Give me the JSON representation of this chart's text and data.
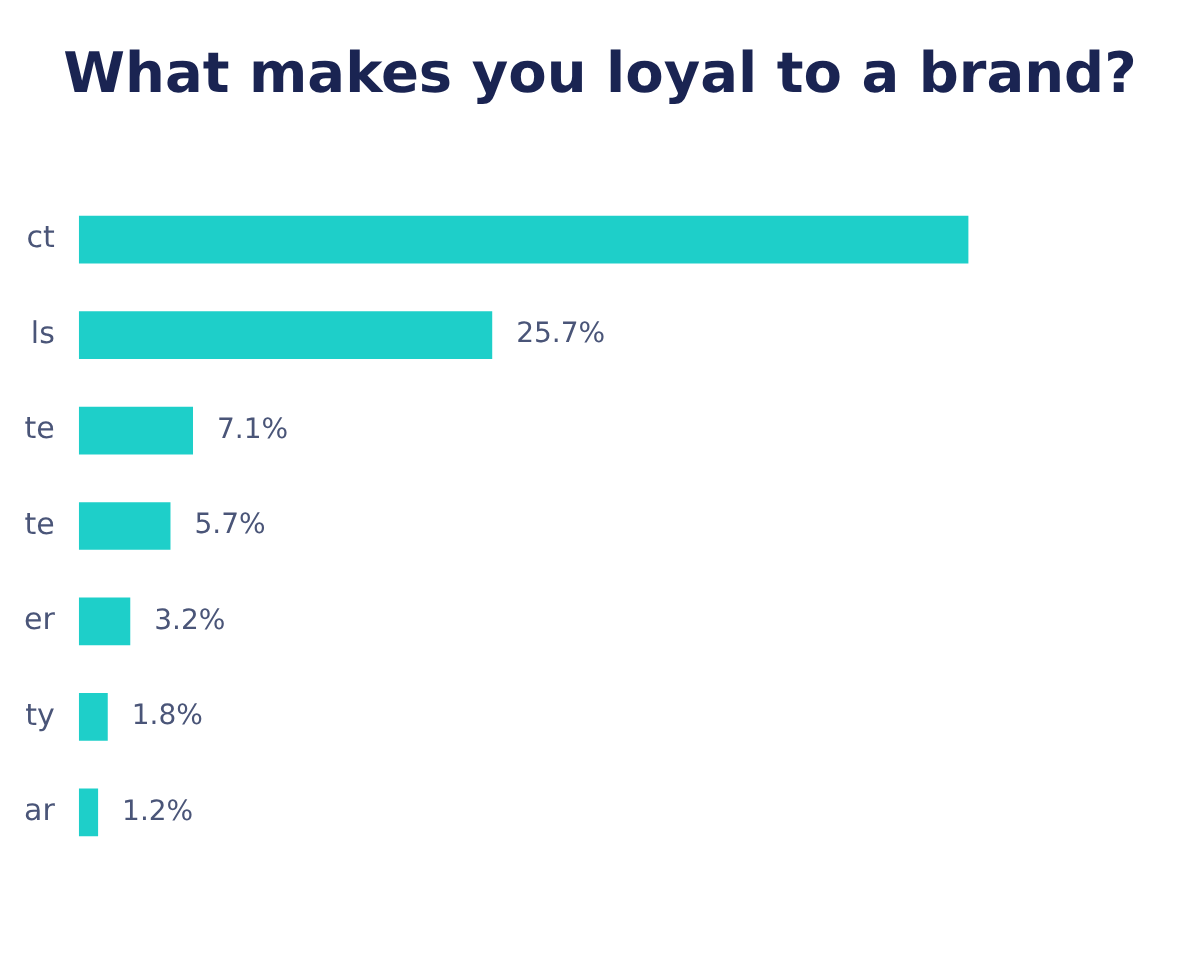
{
  "chart_data": {
    "type": "bar",
    "orientation": "horizontal",
    "title": "What makes you loyal to a brand?",
    "categories": [
      "ct",
      "ls",
      "te",
      "te",
      "er",
      "ty",
      "ar"
    ],
    "values": [
      55.3,
      25.7,
      7.1,
      5.7,
      3.2,
      1.8,
      1.2
    ],
    "value_labels": [
      null,
      "25.7%",
      "7.1%",
      "5.7%",
      "3.2%",
      "1.8%",
      "1.2%"
    ],
    "color": "#1ecfc9",
    "legend": false
  }
}
